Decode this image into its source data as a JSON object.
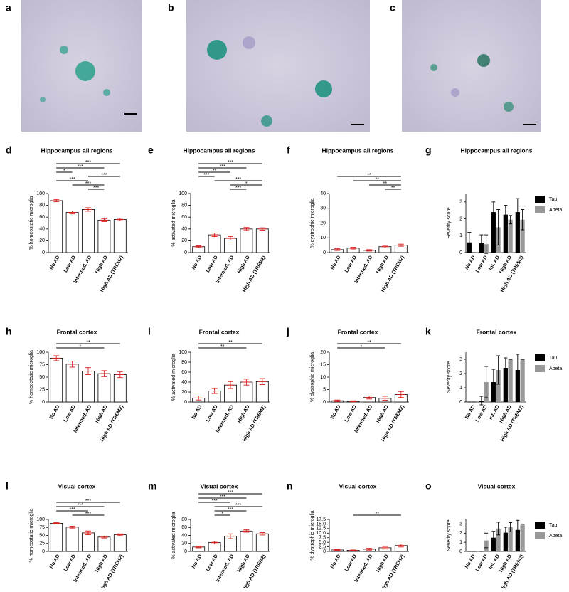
{
  "images": [
    {
      "panel": "a"
    },
    {
      "panel": "b"
    },
    {
      "panel": "c"
    }
  ],
  "chart_data": [
    {
      "type": "bar",
      "panel": "d",
      "title": "Hippocampus all regions",
      "ylabel": "% homeostatic microglia",
      "categories": [
        "No AD",
        "Low AD",
        "Intermed. AD",
        "High AD",
        "High AD (TREM2)"
      ],
      "values": [
        88,
        68,
        73,
        55,
        56
      ],
      "errors": [
        2,
        2.5,
        3,
        2.5,
        2
      ],
      "color": "#ffffff",
      "error_color": "#d62020",
      "ylim": [
        0,
        100
      ],
      "yticks": [
        0,
        20,
        40,
        60,
        80,
        100
      ],
      "significance": [
        {
          "from": 0,
          "to": 4,
          "label": "***"
        },
        {
          "from": 0,
          "to": 3,
          "label": "***"
        },
        {
          "from": 0,
          "to": 1,
          "label": "*"
        },
        {
          "from": 2,
          "to": 4,
          "label": "***"
        },
        {
          "from": 0,
          "to": 2,
          "label": "***"
        },
        {
          "from": 1,
          "to": 3,
          "label": "***"
        },
        {
          "from": 2,
          "to": 3,
          "label": "***"
        }
      ]
    },
    {
      "type": "bar",
      "panel": "e",
      "title": "Hippocampus all regions",
      "ylabel": "% activated microglia",
      "categories": [
        "No AD",
        "Low AD",
        "Intermed. AD",
        "High AD",
        "High AD (TREM2)"
      ],
      "values": [
        10,
        30,
        24,
        40,
        40
      ],
      "errors": [
        1.5,
        3,
        3,
        2.5,
        2
      ],
      "color": "#ffffff",
      "error_color": "#d62020",
      "ylim": [
        0,
        100
      ],
      "yticks": [
        0,
        20,
        40,
        60,
        80,
        100
      ],
      "significance": [
        {
          "from": 0,
          "to": 4,
          "label": "***"
        },
        {
          "from": 0,
          "to": 3,
          "label": "***"
        },
        {
          "from": 0,
          "to": 2,
          "label": "**"
        },
        {
          "from": 0,
          "to": 1,
          "label": "***"
        },
        {
          "from": 1,
          "to": 4,
          "label": "***"
        },
        {
          "from": 2,
          "to": 4,
          "label": "*"
        },
        {
          "from": 2,
          "to": 3,
          "label": "***"
        }
      ]
    },
    {
      "type": "bar",
      "panel": "f",
      "title": "Hippocampus all regions",
      "ylabel": "% dystrophic microglia",
      "categories": [
        "No AD",
        "Low AD",
        "Intermed. AD",
        "High AD",
        "High AD (TREM2)"
      ],
      "values": [
        2,
        3,
        1.5,
        4,
        5
      ],
      "errors": [
        0.6,
        0.6,
        0.5,
        0.8,
        0.7
      ],
      "color": "#ffffff",
      "error_color": "#d62020",
      "ylim": [
        0,
        40
      ],
      "yticks": [
        0,
        10,
        20,
        30,
        40
      ],
      "significance": [
        {
          "from": 0,
          "to": 4,
          "label": "**"
        },
        {
          "from": 1,
          "to": 4,
          "label": "**"
        },
        {
          "from": 2,
          "to": 4,
          "label": "**"
        },
        {
          "from": 3,
          "to": 4,
          "label": "**"
        }
      ]
    },
    {
      "type": "grouped",
      "panel": "g",
      "title": "Hippocampus all regions",
      "ylabel": "Severity score",
      "categories": [
        "No AD",
        "Low AD",
        "Int. AD",
        "High AD",
        "High AD (TREM2)"
      ],
      "series": [
        {
          "name": "Tau",
          "color": "#000000",
          "values": [
            0.6,
            0.55,
            2.4,
            2.25,
            2.4
          ],
          "errors": [
            0.6,
            0.5,
            0.6,
            0.55,
            0.8
          ]
        },
        {
          "name": "Abeta",
          "color": "#999999",
          "values": [
            0,
            0.5,
            1.5,
            1.95,
            1.95
          ],
          "errors": [
            0,
            0.55,
            1.05,
            0.25,
            0.6
          ]
        }
      ],
      "ylim": [
        0,
        3.5
      ],
      "yticks": [
        0,
        1,
        2,
        3
      ]
    },
    {
      "type": "bar",
      "panel": "h",
      "title": "Frontal cortex",
      "ylabel": "% homeostatic microglia",
      "categories": [
        "No AD",
        "Low AD",
        "Intermed. AD",
        "High AD",
        "High AD (TREM2)"
      ],
      "values": [
        88,
        76,
        62,
        57,
        55
      ],
      "errors": [
        5,
        6,
        7,
        6,
        6
      ],
      "color": "#ffffff",
      "error_color": "#d62020",
      "ylim": [
        0,
        100
      ],
      "yticks": [
        0,
        25,
        50,
        75,
        100
      ],
      "significance": [
        {
          "from": 0,
          "to": 4,
          "label": "**"
        },
        {
          "from": 0,
          "to": 3,
          "label": "*"
        }
      ]
    },
    {
      "type": "bar",
      "panel": "i",
      "title": "Frontal cortex",
      "ylabel": "% activated microglia",
      "categories": [
        "No AD",
        "Low AD",
        "Intermed. AD",
        "High AD",
        "High AD (TREM2)"
      ],
      "values": [
        8,
        22,
        34,
        40,
        41
      ],
      "errors": [
        4,
        5,
        7,
        6,
        6
      ],
      "color": "#ffffff",
      "error_color": "#d62020",
      "ylim": [
        0,
        100
      ],
      "yticks": [
        0,
        20,
        40,
        60,
        80,
        100
      ],
      "significance": [
        {
          "from": 0,
          "to": 4,
          "label": "**"
        },
        {
          "from": 0,
          "to": 3,
          "label": "**"
        }
      ]
    },
    {
      "type": "bar",
      "panel": "j",
      "title": "Frontal cortex",
      "ylabel": "% dystrophic microglia",
      "categories": [
        "No AD",
        "Low AD",
        "Intermed. AD",
        "High AD",
        "High AD (TREM2)"
      ],
      "values": [
        0.5,
        0.3,
        1.8,
        1.5,
        3
      ],
      "errors": [
        0.3,
        0.2,
        0.6,
        0.8,
        1.2
      ],
      "color": "#ffffff",
      "error_color": "#d62020",
      "ylim": [
        0,
        20
      ],
      "yticks": [
        0,
        5,
        10,
        15,
        20
      ],
      "significance": [
        {
          "from": 0,
          "to": 4,
          "label": "**"
        },
        {
          "from": 0,
          "to": 3,
          "label": "*"
        }
      ]
    },
    {
      "type": "grouped",
      "panel": "k",
      "title": "Frontal cortex",
      "ylabel": "Severity score",
      "categories": [
        "No AD",
        "Low AD",
        "Int. AD",
        "High AD",
        "High AD (TREM2)"
      ],
      "series": [
        {
          "name": "Tau",
          "color": "#000000",
          "values": [
            0,
            0.1,
            1.4,
            2.4,
            2.25
          ],
          "errors": [
            0,
            0.3,
            0.9,
            0.7,
            1.1
          ]
        },
        {
          "name": "Abeta",
          "color": "#999999",
          "values": [
            0,
            1.4,
            2.25,
            3,
            3
          ],
          "errors": [
            0,
            1.1,
            1,
            0,
            0
          ]
        }
      ],
      "ylim": [
        0,
        3.5
      ],
      "yticks": [
        0,
        1,
        2,
        3
      ]
    },
    {
      "type": "bar",
      "panel": "l",
      "title": "Visual cortex",
      "ylabel": "% homeostatic microglia",
      "categories": [
        "No AD",
        "Low AD",
        "Intermed. AD",
        "High AD",
        "High AD (TREM2)"
      ],
      "values": [
        88,
        76,
        58,
        45,
        52
      ],
      "errors": [
        2,
        3,
        6,
        3,
        3
      ],
      "color": "#ffffff",
      "error_color": "#d62020",
      "ylim": [
        0,
        100
      ],
      "yticks": [
        0,
        25,
        50,
        75,
        100
      ],
      "significance": [
        {
          "from": 0,
          "to": 4,
          "label": "***"
        },
        {
          "from": 0,
          "to": 3,
          "label": "***"
        },
        {
          "from": 0,
          "to": 2,
          "label": "***"
        },
        {
          "from": 1,
          "to": 3,
          "label": "***"
        }
      ]
    },
    {
      "type": "bar",
      "panel": "m",
      "title": "Visual cortex",
      "ylabel": "% activated microglia",
      "categories": [
        "No AD",
        "Low AD",
        "Intermed. AD",
        "High AD",
        "High AD (TREM2)"
      ],
      "values": [
        11,
        22,
        38,
        51,
        44
      ],
      "errors": [
        2,
        3,
        6,
        3,
        3
      ],
      "color": "#ffffff",
      "error_color": "#d62020",
      "ylim": [
        0,
        80
      ],
      "yticks": [
        0,
        20,
        40,
        60,
        80
      ],
      "significance": [
        {
          "from": 0,
          "to": 4,
          "label": "***"
        },
        {
          "from": 0,
          "to": 3,
          "label": "***"
        },
        {
          "from": 0,
          "to": 2,
          "label": "***"
        },
        {
          "from": 1,
          "to": 4,
          "label": "***"
        },
        {
          "from": 1,
          "to": 3,
          "label": "***"
        },
        {
          "from": 1,
          "to": 2,
          "label": "*"
        }
      ]
    },
    {
      "type": "bar",
      "panel": "n",
      "title": "Visual cortex",
      "ylabel": "% dystrophic microglia",
      "categories": [
        "No AD",
        "Low AD",
        "Intermed. AD",
        "High AD",
        "High AD (TREM2)"
      ],
      "values": [
        0.8,
        0.6,
        1.2,
        2,
        3.2
      ],
      "errors": [
        0.3,
        0.2,
        0.5,
        0.7,
        0.8
      ],
      "color": "#ffffff",
      "error_color": "#d62020",
      "ylim": [
        0,
        17.5
      ],
      "yticks": [
        0,
        2.5,
        {
          "value": 5,
          "label": "5.0"
        },
        7.5,
        {
          "value": 10,
          "label": "10.0"
        },
        12.5,
        {
          "value": 15,
          "label": "15.0"
        },
        17.5
      ],
      "significance": [
        {
          "from": 1,
          "to": 4,
          "label": "**"
        }
      ]
    },
    {
      "type": "grouped",
      "panel": "o",
      "title": "Visual cortex",
      "ylabel": "Severity score",
      "categories": [
        "No AD",
        "Low AD",
        "Int. AD",
        "High AD",
        "High AD (TREM2)"
      ],
      "series": [
        {
          "name": "Tau",
          "color": "#000000",
          "values": [
            0,
            0,
            1.5,
            2.05,
            2.35
          ],
          "errors": [
            0,
            0,
            0.7,
            0.6,
            1.05
          ]
        },
        {
          "name": "Abeta",
          "color": "#999999",
          "values": [
            0,
            1.2,
            2.5,
            2.65,
            3
          ],
          "errors": [
            0,
            0.8,
            0.7,
            0.5,
            0
          ]
        }
      ],
      "ylim": [
        0,
        3.5
      ],
      "yticks": [
        0,
        1,
        2,
        3
      ]
    }
  ]
}
